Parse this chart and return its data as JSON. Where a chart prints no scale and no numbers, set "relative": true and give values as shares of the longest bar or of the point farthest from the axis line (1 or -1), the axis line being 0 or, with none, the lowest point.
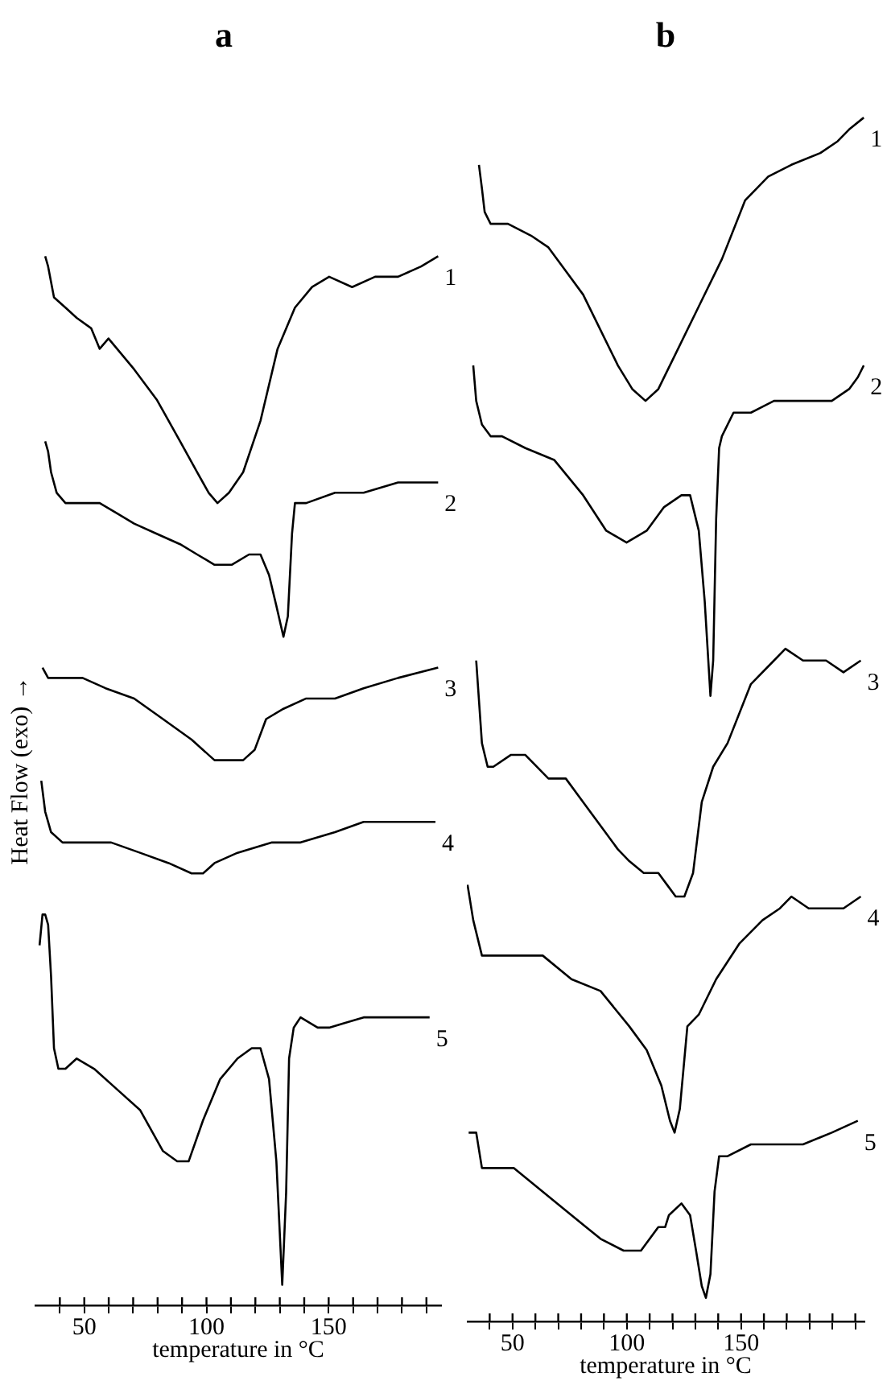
{
  "chart_data": [
    {
      "type": "line",
      "title": "a",
      "xlabel": "temperature in °C",
      "ylabel": "Heat Flow (exo) →",
      "relative": true,
      "xlim": [
        30,
        196
      ],
      "xticks": [
        {
          "value": 40,
          "label": null
        },
        50,
        {
          "value": 60,
          "label": null
        },
        {
          "value": 70,
          "label": null
        },
        {
          "value": 80,
          "label": null
        },
        {
          "value": 90,
          "label": null
        },
        100,
        {
          "value": 110,
          "label": null
        },
        {
          "value": 120,
          "label": null
        },
        {
          "value": 130,
          "label": null
        },
        {
          "value": 140,
          "label": null
        },
        150,
        {
          "value": 160,
          "label": null
        },
        {
          "value": 170,
          "label": null
        },
        {
          "value": 180,
          "label": null
        },
        {
          "value": 190,
          "label": null
        }
      ],
      "series": [
        {
          "name": "1",
          "color": "#000000",
          "x": [
            34.0,
            35.2,
            37.6,
            42.3,
            46.9,
            52.8,
            56.3,
            59.9,
            63.4,
            70.4,
            79.8,
            89.2,
            96.2,
            100.9,
            104.5,
            109.2,
            115.0,
            122.1,
            129.1,
            136.2,
            143.2,
            150.2,
            159.6,
            169.0,
            178.4,
            187.8,
            194.8
          ],
          "values": [
            1.0,
            0.99,
            0.96,
            0.95,
            0.94,
            0.93,
            0.91,
            0.92,
            0.91,
            0.89,
            0.86,
            0.82,
            0.79,
            0.77,
            0.76,
            0.77,
            0.79,
            0.84,
            0.91,
            0.95,
            0.97,
            0.98,
            0.97,
            0.98,
            0.98,
            0.99,
            1.0
          ]
        },
        {
          "name": "2",
          "color": "#000000",
          "x": [
            34.0,
            35.2,
            36.4,
            38.7,
            42.3,
            49.3,
            56.3,
            63.4,
            70.4,
            79.8,
            89.2,
            96.2,
            103.3,
            110.3,
            117.4,
            122.1,
            125.6,
            128.6,
            131.5,
            133.3,
            135.0,
            136.2,
            140.8,
            152.6,
            164.3,
            178.4,
            194.8
          ],
          "values": [
            0.82,
            0.81,
            0.79,
            0.77,
            0.76,
            0.76,
            0.76,
            0.75,
            0.74,
            0.73,
            0.72,
            0.71,
            0.7,
            0.7,
            0.71,
            0.71,
            0.69,
            0.66,
            0.63,
            0.65,
            0.73,
            0.76,
            0.76,
            0.77,
            0.77,
            0.78,
            0.78
          ]
        },
        {
          "name": "3",
          "color": "#000000",
          "x": [
            32.9,
            35.2,
            42.3,
            49.3,
            58.7,
            70.4,
            82.2,
            93.9,
            103.3,
            110.3,
            115.0,
            119.7,
            124.4,
            131.5,
            140.8,
            152.6,
            164.3,
            178.4,
            194.8
          ],
          "values": [
            0.6,
            0.59,
            0.59,
            0.59,
            0.58,
            0.57,
            0.55,
            0.53,
            0.51,
            0.51,
            0.51,
            0.52,
            0.55,
            0.56,
            0.57,
            0.57,
            0.58,
            0.59,
            0.6
          ]
        },
        {
          "name": "4",
          "color": "#000000",
          "x": [
            32.4,
            34.0,
            36.4,
            41.1,
            49.3,
            61.0,
            72.8,
            84.5,
            93.9,
            98.6,
            103.3,
            112.7,
            126.8,
            138.5,
            152.6,
            164.3,
            178.4,
            193.7
          ],
          "values": [
            0.49,
            0.46,
            0.44,
            0.43,
            0.43,
            0.43,
            0.42,
            0.41,
            0.4,
            0.4,
            0.41,
            0.42,
            0.43,
            0.43,
            0.44,
            0.45,
            0.45,
            0.45
          ]
        },
        {
          "name": "5",
          "color": "#000000",
          "x": [
            31.7,
            32.9,
            34.0,
            35.2,
            36.4,
            37.6,
            39.4,
            42.3,
            46.9,
            54.0,
            63.4,
            72.8,
            82.2,
            88.0,
            92.7,
            98.6,
            105.6,
            112.7,
            118.5,
            122.1,
            125.6,
            128.6,
            131.0,
            132.6,
            133.8,
            135.7,
            138.5,
            145.5,
            150.2,
            164.3,
            178.4,
            191.3
          ],
          "values": [
            0.33,
            0.36,
            0.36,
            0.35,
            0.3,
            0.23,
            0.21,
            0.21,
            0.22,
            0.21,
            0.19,
            0.17,
            0.13,
            0.12,
            0.12,
            0.16,
            0.2,
            0.22,
            0.23,
            0.23,
            0.2,
            0.12,
            0.0,
            0.09,
            0.22,
            0.25,
            0.26,
            0.25,
            0.25,
            0.26,
            0.26,
            0.26
          ]
        }
      ]
    },
    {
      "type": "line",
      "title": "b",
      "xlabel": "temperature in °C",
      "relative": true,
      "xlim": [
        30,
        204
      ],
      "xticks": [
        {
          "value": 40,
          "label": null
        },
        50,
        {
          "value": 60,
          "label": null
        },
        {
          "value": 70,
          "label": null
        },
        {
          "value": 80,
          "label": null
        },
        {
          "value": 90,
          "label": null
        },
        100,
        {
          "value": 110,
          "label": null
        },
        {
          "value": 120,
          "label": null
        },
        {
          "value": 130,
          "label": null
        },
        {
          "value": 140,
          "label": null
        },
        150,
        {
          "value": 160,
          "label": null
        },
        {
          "value": 170,
          "label": null
        },
        {
          "value": 180,
          "label": null
        },
        {
          "value": 190,
          "label": null
        },
        {
          "value": 200,
          "label": null
        }
      ],
      "series": [
        {
          "name": "1",
          "color": "#000000",
          "x": [
            35.3,
            36.6,
            37.8,
            40.4,
            48.0,
            58.1,
            65.7,
            73.3,
            80.9,
            88.5,
            96.1,
            102.4,
            108.2,
            113.8,
            121.4,
            131.5,
            141.6,
            151.8,
            161.9,
            172.0,
            184.7,
            192.3,
            197.3,
            203.7
          ],
          "values": [
            0.96,
            0.94,
            0.92,
            0.91,
            0.91,
            0.9,
            0.89,
            0.87,
            0.85,
            0.82,
            0.79,
            0.77,
            0.76,
            0.77,
            0.8,
            0.84,
            0.88,
            0.93,
            0.95,
            0.96,
            0.97,
            0.98,
            0.99,
            1.0
          ]
        },
        {
          "name": "2",
          "color": "#000000",
          "x": [
            32.8,
            34.1,
            36.6,
            40.4,
            45.4,
            55.6,
            68.2,
            80.9,
            91.0,
            99.9,
            108.7,
            116.3,
            123.9,
            127.7,
            131.5,
            134.1,
            136.6,
            137.8,
            139.1,
            140.4,
            141.6,
            146.7,
            154.3,
            164.4,
            177.1,
            189.7,
            197.3,
            201.1,
            203.7
          ],
          "values": [
            0.79,
            0.76,
            0.74,
            0.73,
            0.73,
            0.72,
            0.71,
            0.68,
            0.65,
            0.64,
            0.65,
            0.67,
            0.68,
            0.68,
            0.65,
            0.59,
            0.51,
            0.54,
            0.66,
            0.72,
            0.73,
            0.75,
            0.75,
            0.76,
            0.76,
            0.76,
            0.77,
            0.78,
            0.79
          ]
        },
        {
          "name": "3",
          "color": "#000000",
          "x": [
            34.1,
            36.6,
            39.1,
            41.6,
            49.2,
            55.6,
            65.7,
            73.3,
            80.9,
            88.5,
            96.1,
            101.1,
            107.4,
            113.8,
            117.6,
            121.4,
            125.2,
            129.0,
            132.8,
            137.8,
            144.1,
            154.3,
            164.4,
            169.4,
            177.1,
            187.2,
            194.8,
            202.4
          ],
          "values": [
            0.54,
            0.47,
            0.45,
            0.45,
            0.46,
            0.46,
            0.44,
            0.44,
            0.42,
            0.4,
            0.38,
            0.37,
            0.36,
            0.36,
            0.35,
            0.34,
            0.34,
            0.36,
            0.42,
            0.45,
            0.47,
            0.52,
            0.54,
            0.55,
            0.54,
            0.54,
            0.53,
            0.54
          ]
        },
        {
          "name": "4",
          "color": "#000000",
          "x": [
            30.3,
            32.8,
            36.6,
            40.4,
            50.5,
            63.2,
            75.8,
            88.5,
            101.1,
            108.7,
            115.1,
            118.9,
            120.9,
            123.2,
            126.5,
            131.5,
            139.1,
            149.2,
            159.4,
            167.0,
            172.0,
            179.6,
            187.2,
            194.8,
            202.4
          ],
          "values": [
            0.35,
            0.32,
            0.29,
            0.29,
            0.29,
            0.29,
            0.27,
            0.26,
            0.23,
            0.21,
            0.18,
            0.15,
            0.14,
            0.16,
            0.23,
            0.24,
            0.27,
            0.3,
            0.32,
            0.33,
            0.34,
            0.33,
            0.33,
            0.33,
            0.34
          ]
        },
        {
          "name": "5",
          "color": "#000000",
          "x": [
            30.8,
            32.3,
            34.1,
            36.6,
            40.4,
            50.5,
            63.2,
            75.8,
            88.5,
            98.6,
            106.2,
            113.8,
            116.8,
            118.4,
            123.9,
            127.7,
            130.3,
            132.8,
            134.6,
            136.6,
            138.4,
            140.4,
            144.1,
            154.3,
            164.4,
            177.1,
            189.7,
            201.1
          ],
          "values": [
            0.14,
            0.14,
            0.14,
            0.11,
            0.11,
            0.11,
            0.09,
            0.07,
            0.05,
            0.04,
            0.04,
            0.06,
            0.06,
            0.07,
            0.08,
            0.07,
            0.04,
            0.01,
            0.0,
            0.02,
            0.09,
            0.12,
            0.12,
            0.13,
            0.13,
            0.13,
            0.14,
            0.15
          ]
        }
      ]
    }
  ]
}
